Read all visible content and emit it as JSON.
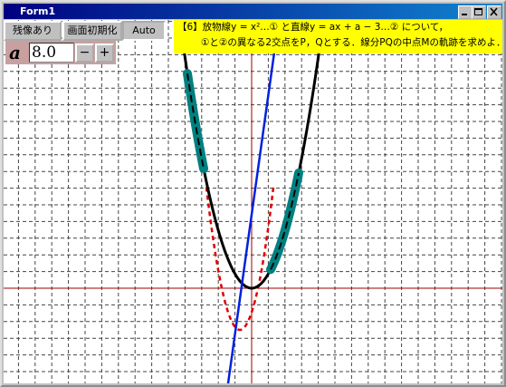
{
  "window": {
    "title": "Form1"
  },
  "toolbar": {
    "buttons": [
      "残像あり",
      "画面初期化",
      "Auto"
    ]
  },
  "parameter": {
    "label": "a",
    "value": "8.0",
    "buttons": [
      "−",
      "+"
    ]
  },
  "problem": {
    "lines": [
      "【6】放物線y = x²…① と直線y = ax + a − 3…② について，",
      "①と②の異なる2交点をP，Qとする．線分PQの中点Mの軌跡を求めよ．"
    ]
  }
}
